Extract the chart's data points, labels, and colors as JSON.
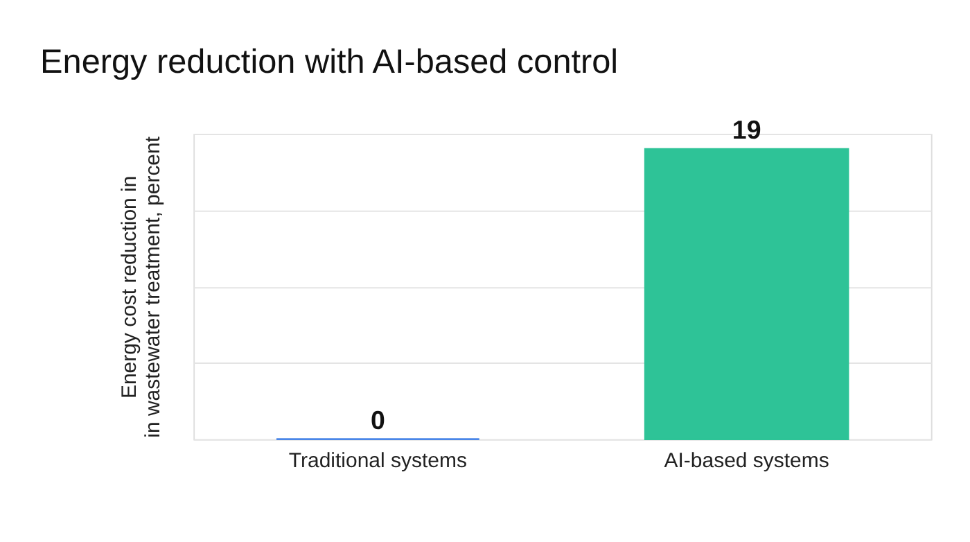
{
  "chart_data": {
    "type": "bar",
    "title": "Energy reduction with AI-based control",
    "ylabel": "Energy cost reduction in\nin wastewater treatment, percent",
    "categories": [
      "Traditional systems",
      "AI-based systems"
    ],
    "values": [
      0,
      19
    ],
    "colors": [
      "#4a86e8",
      "#2ec397"
    ],
    "ylim": [
      0,
      20
    ],
    "yticks": [
      {
        "value": 0,
        "label": null
      },
      {
        "value": 5,
        "label": null
      },
      {
        "value": 10,
        "label": null
      },
      {
        "value": 15,
        "label": null
      },
      {
        "value": 20,
        "label": null
      }
    ],
    "tick_labels": "x",
    "grid": "y",
    "data_labels": true
  }
}
